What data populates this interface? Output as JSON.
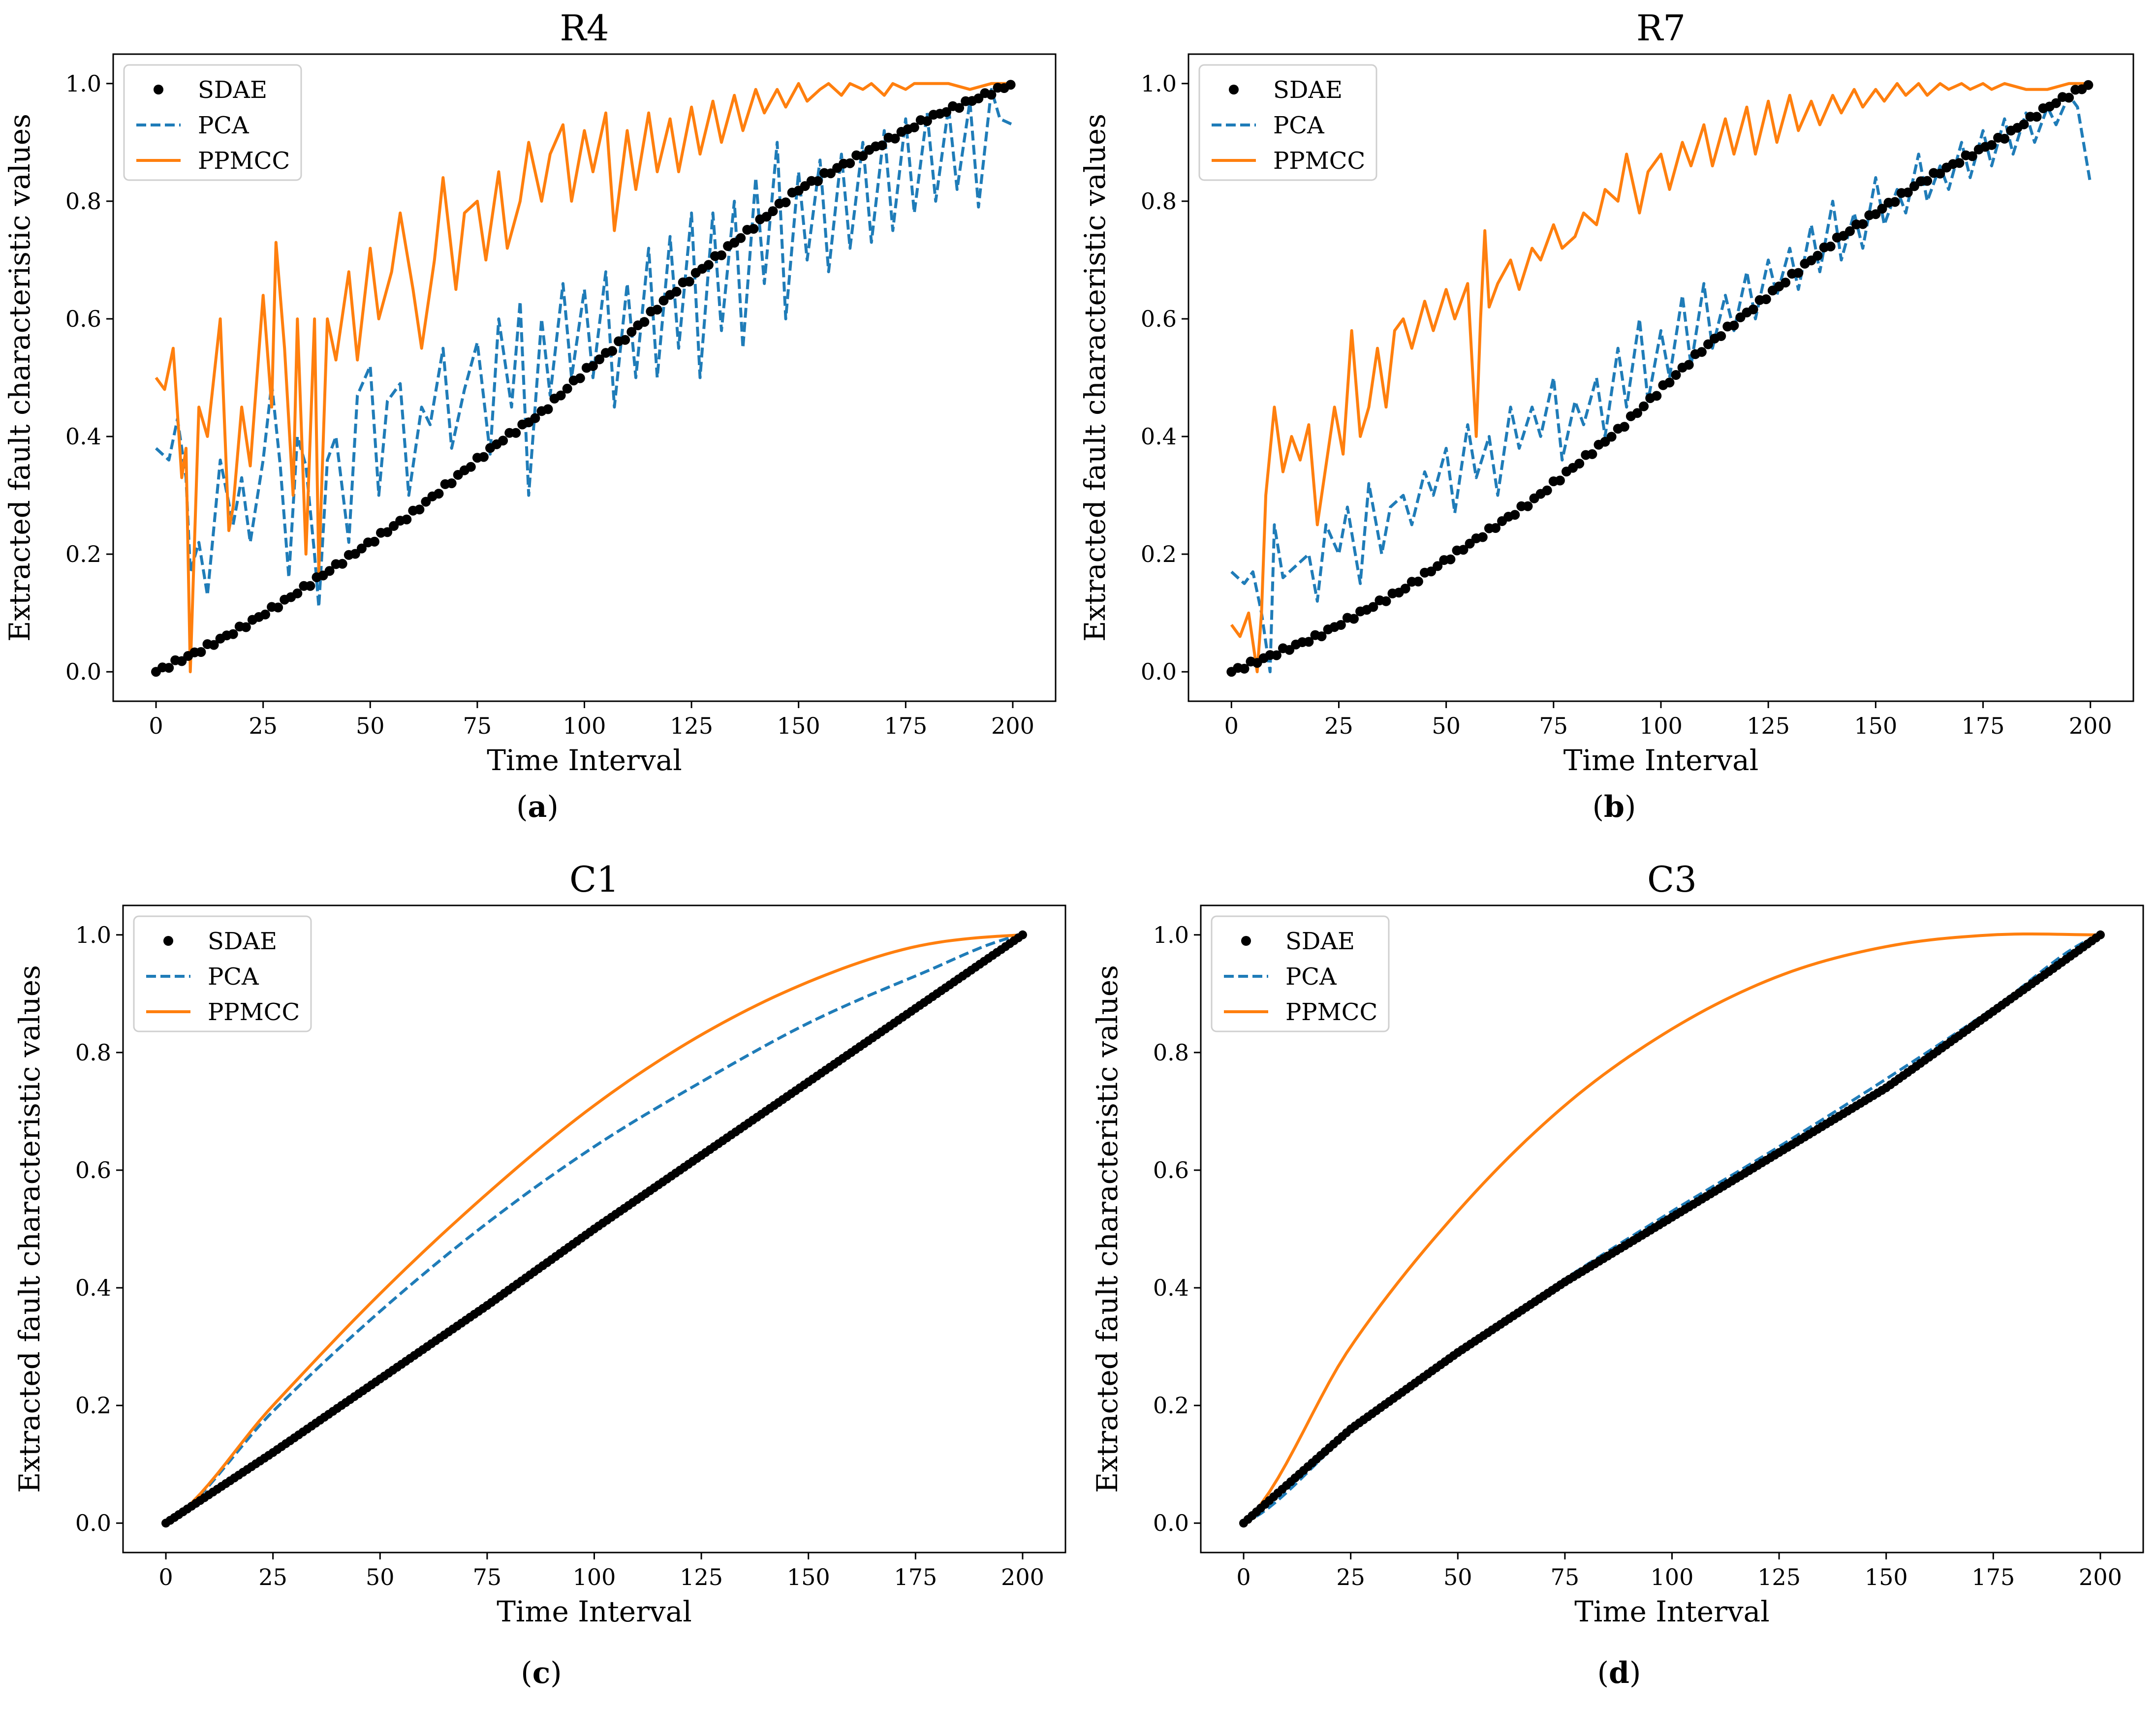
{
  "figure": {
    "colors": {
      "SDAE": "#000000",
      "PCA": "#1f7cb8",
      "PPMCC": "#ff7f0e"
    }
  },
  "chart_data": [
    {
      "panel": "a",
      "caption": "a",
      "type": "line",
      "title": "R4",
      "xlabel": "Time Interval",
      "ylabel": "Extracted fault characteristic values",
      "xlim": [
        -10,
        210
      ],
      "ylim": [
        -0.05,
        1.05
      ],
      "xticks": [
        "0",
        "25",
        "50",
        "75",
        "100",
        "125",
        "150",
        "175",
        "200"
      ],
      "yticks": [
        "0.0",
        "0.2",
        "0.4",
        "0.6",
        "0.8",
        "1.0"
      ],
      "legend": [
        "SDAE",
        "PCA",
        "PPMCC"
      ],
      "legend_position": "upper-left",
      "series": [
        {
          "name": "SDAE",
          "style": "points",
          "x": [
            0,
            10,
            20,
            30,
            40,
            50,
            60,
            70,
            80,
            90,
            100,
            110,
            120,
            130,
            140,
            150,
            160,
            170,
            180,
            190,
            200
          ],
          "y": [
            0.0,
            0.035,
            0.075,
            0.12,
            0.17,
            0.22,
            0.27,
            0.33,
            0.39,
            0.44,
            0.51,
            0.57,
            0.64,
            0.7,
            0.76,
            0.82,
            0.86,
            0.9,
            0.94,
            0.97,
            1.0
          ]
        },
        {
          "name": "PCA",
          "style": "dashed",
          "x": [
            0,
            3,
            5,
            7,
            8,
            10,
            12,
            15,
            18,
            20,
            22,
            25,
            27,
            29,
            31,
            33,
            35,
            37,
            38,
            40,
            42,
            45,
            47,
            50,
            52,
            54,
            57,
            59,
            62,
            64,
            67,
            69,
            72,
            75,
            78,
            80,
            83,
            85,
            87,
            90,
            92,
            95,
            97,
            100,
            102,
            105,
            107,
            110,
            112,
            115,
            117,
            120,
            122,
            125,
            127,
            130,
            132,
            135,
            137,
            140,
            142,
            145,
            147,
            150,
            152,
            155,
            157,
            160,
            162,
            165,
            167,
            170,
            172,
            175,
            177,
            180,
            182,
            185,
            187,
            190,
            192,
            195,
            197,
            200
          ],
          "y": [
            0.38,
            0.36,
            0.43,
            0.33,
            0.17,
            0.22,
            0.13,
            0.36,
            0.25,
            0.33,
            0.22,
            0.36,
            0.49,
            0.35,
            0.16,
            0.4,
            0.35,
            0.2,
            0.11,
            0.36,
            0.4,
            0.22,
            0.47,
            0.52,
            0.3,
            0.46,
            0.49,
            0.3,
            0.45,
            0.42,
            0.55,
            0.38,
            0.48,
            0.56,
            0.37,
            0.6,
            0.45,
            0.63,
            0.3,
            0.6,
            0.47,
            0.66,
            0.5,
            0.65,
            0.5,
            0.68,
            0.45,
            0.66,
            0.5,
            0.72,
            0.5,
            0.74,
            0.55,
            0.78,
            0.5,
            0.78,
            0.58,
            0.8,
            0.55,
            0.84,
            0.66,
            0.9,
            0.6,
            0.85,
            0.7,
            0.87,
            0.68,
            0.88,
            0.72,
            0.9,
            0.73,
            0.92,
            0.75,
            0.94,
            0.78,
            0.95,
            0.8,
            0.96,
            0.82,
            0.97,
            0.79,
            0.99,
            0.94,
            0.93
          ]
        },
        {
          "name": "PPMCC",
          "style": "solid",
          "x": [
            0,
            2,
            4,
            6,
            7,
            8,
            10,
            12,
            15,
            17,
            18,
            20,
            22,
            25,
            27,
            28,
            30,
            32,
            33,
            35,
            37,
            38,
            40,
            42,
            45,
            47,
            50,
            52,
            55,
            57,
            60,
            62,
            65,
            67,
            70,
            72,
            75,
            77,
            80,
            82,
            85,
            87,
            90,
            92,
            95,
            97,
            100,
            102,
            105,
            107,
            110,
            112,
            115,
            117,
            120,
            122,
            125,
            127,
            130,
            132,
            135,
            137,
            140,
            142,
            145,
            147,
            150,
            152,
            155,
            157,
            160,
            162,
            165,
            167,
            170,
            172,
            175,
            177,
            180,
            185,
            190,
            195,
            200
          ],
          "y": [
            0.5,
            0.48,
            0.55,
            0.33,
            0.38,
            0.0,
            0.45,
            0.4,
            0.6,
            0.24,
            0.28,
            0.45,
            0.35,
            0.64,
            0.45,
            0.73,
            0.55,
            0.3,
            0.6,
            0.2,
            0.6,
            0.17,
            0.6,
            0.53,
            0.68,
            0.53,
            0.72,
            0.6,
            0.68,
            0.78,
            0.65,
            0.55,
            0.7,
            0.84,
            0.65,
            0.78,
            0.8,
            0.7,
            0.85,
            0.72,
            0.8,
            0.9,
            0.8,
            0.88,
            0.93,
            0.8,
            0.92,
            0.85,
            0.95,
            0.75,
            0.92,
            0.82,
            0.95,
            0.85,
            0.94,
            0.85,
            0.96,
            0.88,
            0.97,
            0.9,
            0.98,
            0.92,
            0.99,
            0.95,
            0.99,
            0.96,
            1.0,
            0.97,
            0.99,
            1.0,
            0.98,
            1.0,
            0.99,
            1.0,
            0.98,
            1.0,
            0.99,
            1.0,
            1.0,
            1.0,
            0.99,
            1.0,
            1.0
          ]
        }
      ]
    },
    {
      "panel": "b",
      "caption": "b",
      "type": "line",
      "title": "R7",
      "xlabel": "Time Interval",
      "ylabel": "Extracted fault characteristic values",
      "xlim": [
        -10,
        210
      ],
      "ylim": [
        -0.05,
        1.05
      ],
      "xticks": [
        "0",
        "25",
        "50",
        "75",
        "100",
        "125",
        "150",
        "175",
        "200"
      ],
      "yticks": [
        "0.0",
        "0.2",
        "0.4",
        "0.6",
        "0.8",
        "1.0"
      ],
      "legend": [
        "SDAE",
        "PCA",
        "PPMCC"
      ],
      "legend_position": "upper-left",
      "series": [
        {
          "name": "SDAE",
          "style": "points",
          "x": [
            0,
            10,
            20,
            30,
            40,
            50,
            60,
            70,
            80,
            90,
            100,
            110,
            120,
            130,
            140,
            150,
            160,
            170,
            180,
            190,
            200
          ],
          "y": [
            0.0,
            0.03,
            0.06,
            0.1,
            0.14,
            0.19,
            0.24,
            0.29,
            0.35,
            0.41,
            0.48,
            0.55,
            0.61,
            0.67,
            0.73,
            0.78,
            0.83,
            0.87,
            0.91,
            0.96,
            1.0
          ]
        },
        {
          "name": "PCA",
          "style": "dashed",
          "x": [
            0,
            3,
            5,
            7,
            8,
            9,
            10,
            12,
            15,
            18,
            20,
            22,
            25,
            27,
            30,
            32,
            35,
            37,
            40,
            42,
            45,
            47,
            50,
            52,
            55,
            57,
            60,
            62,
            65,
            67,
            70,
            72,
            75,
            77,
            80,
            82,
            85,
            87,
            90,
            92,
            95,
            97,
            100,
            102,
            105,
            107,
            110,
            112,
            115,
            117,
            120,
            122,
            125,
            127,
            130,
            132,
            135,
            137,
            140,
            142,
            145,
            147,
            150,
            152,
            155,
            157,
            160,
            162,
            165,
            167,
            170,
            172,
            175,
            177,
            180,
            182,
            185,
            187,
            190,
            192,
            195,
            197,
            200
          ],
          "y": [
            0.17,
            0.15,
            0.17,
            0.1,
            0.05,
            0.0,
            0.25,
            0.16,
            0.18,
            0.2,
            0.12,
            0.25,
            0.2,
            0.28,
            0.15,
            0.32,
            0.2,
            0.28,
            0.3,
            0.25,
            0.34,
            0.3,
            0.38,
            0.27,
            0.42,
            0.33,
            0.4,
            0.3,
            0.45,
            0.38,
            0.45,
            0.4,
            0.5,
            0.36,
            0.46,
            0.42,
            0.5,
            0.4,
            0.55,
            0.45,
            0.6,
            0.46,
            0.58,
            0.5,
            0.64,
            0.52,
            0.66,
            0.55,
            0.64,
            0.58,
            0.68,
            0.6,
            0.7,
            0.64,
            0.72,
            0.65,
            0.76,
            0.68,
            0.8,
            0.7,
            0.78,
            0.72,
            0.84,
            0.76,
            0.82,
            0.78,
            0.88,
            0.8,
            0.86,
            0.82,
            0.9,
            0.84,
            0.92,
            0.86,
            0.94,
            0.88,
            0.95,
            0.9,
            0.96,
            0.93,
            0.98,
            0.96,
            0.83
          ]
        },
        {
          "name": "PPMCC",
          "style": "solid",
          "x": [
            0,
            2,
            4,
            6,
            7,
            8,
            10,
            12,
            14,
            16,
            18,
            20,
            22,
            24,
            26,
            28,
            30,
            32,
            34,
            36,
            38,
            40,
            42,
            45,
            47,
            50,
            52,
            55,
            57,
            58,
            59,
            60,
            62,
            65,
            67,
            70,
            72,
            75,
            77,
            80,
            82,
            85,
            87,
            90,
            92,
            95,
            97,
            100,
            102,
            105,
            107,
            110,
            112,
            115,
            117,
            120,
            122,
            125,
            127,
            130,
            132,
            135,
            137,
            140,
            142,
            145,
            147,
            150,
            152,
            155,
            157,
            160,
            162,
            165,
            167,
            170,
            172,
            175,
            177,
            180,
            185,
            190,
            195,
            200
          ],
          "y": [
            0.08,
            0.06,
            0.1,
            0.0,
            0.1,
            0.3,
            0.45,
            0.34,
            0.4,
            0.36,
            0.42,
            0.25,
            0.35,
            0.45,
            0.37,
            0.58,
            0.4,
            0.45,
            0.55,
            0.45,
            0.58,
            0.6,
            0.55,
            0.63,
            0.58,
            0.65,
            0.6,
            0.66,
            0.4,
            0.6,
            0.75,
            0.62,
            0.66,
            0.7,
            0.65,
            0.72,
            0.7,
            0.76,
            0.72,
            0.74,
            0.78,
            0.76,
            0.82,
            0.8,
            0.88,
            0.78,
            0.85,
            0.88,
            0.82,
            0.9,
            0.86,
            0.93,
            0.86,
            0.94,
            0.88,
            0.96,
            0.88,
            0.97,
            0.9,
            0.98,
            0.92,
            0.97,
            0.93,
            0.98,
            0.95,
            0.99,
            0.96,
            0.99,
            0.97,
            1.0,
            0.98,
            1.0,
            0.98,
            1.0,
            0.99,
            1.0,
            0.99,
            1.0,
            0.99,
            1.0,
            0.99,
            0.99,
            1.0,
            1.0
          ]
        }
      ]
    },
    {
      "panel": "c",
      "caption": "c",
      "type": "line",
      "title": "C1",
      "xlabel": "Time Interval",
      "ylabel": "Extracted fault characteristic values",
      "xlim": [
        -10,
        210
      ],
      "ylim": [
        -0.05,
        1.05
      ],
      "xticks": [
        "0",
        "25",
        "50",
        "75",
        "100",
        "125",
        "150",
        "175",
        "200"
      ],
      "yticks": [
        "0.0",
        "0.2",
        "0.4",
        "0.6",
        "0.8",
        "1.0"
      ],
      "legend": [
        "SDAE",
        "PCA",
        "PPMCC"
      ],
      "legend_position": "upper-left",
      "series": [
        {
          "name": "SDAE",
          "style": "points",
          "x": [
            0,
            25,
            50,
            75,
            100,
            125,
            150,
            175,
            200
          ],
          "y": [
            0.0,
            0.12,
            0.245,
            0.37,
            0.5,
            0.625,
            0.75,
            0.875,
            1.0
          ]
        },
        {
          "name": "PCA",
          "style": "dashed",
          "x": [
            0,
            25,
            50,
            75,
            100,
            125,
            150,
            175,
            200
          ],
          "y": [
            0.0,
            0.19,
            0.36,
            0.51,
            0.64,
            0.75,
            0.85,
            0.93,
            1.0
          ]
        },
        {
          "name": "PPMCC",
          "style": "solid",
          "x": [
            0,
            25,
            50,
            75,
            100,
            125,
            150,
            175,
            200
          ],
          "y": [
            0.0,
            0.2,
            0.39,
            0.56,
            0.71,
            0.83,
            0.92,
            0.98,
            1.0
          ]
        }
      ]
    },
    {
      "panel": "d",
      "caption": "d",
      "type": "line",
      "title": "C3",
      "xlabel": "Time Interval",
      "ylabel": "Extracted fault characteristic values",
      "xlim": [
        -10,
        210
      ],
      "ylim": [
        -0.05,
        1.05
      ],
      "xticks": [
        "0",
        "25",
        "50",
        "75",
        "100",
        "125",
        "150",
        "175",
        "200"
      ],
      "yticks": [
        "0.0",
        "0.2",
        "0.4",
        "0.6",
        "0.8",
        "1.0"
      ],
      "legend": [
        "SDAE",
        "PCA",
        "PPMCC"
      ],
      "legend_position": "upper-left",
      "series": [
        {
          "name": "SDAE",
          "style": "points",
          "x": [
            0,
            25,
            50,
            75,
            100,
            125,
            150,
            175,
            200
          ],
          "y": [
            0.0,
            0.16,
            0.29,
            0.41,
            0.52,
            0.63,
            0.74,
            0.87,
            1.0
          ]
        },
        {
          "name": "PCA",
          "style": "dashed",
          "x": [
            0,
            25,
            50,
            75,
            100,
            125,
            150,
            175,
            200
          ],
          "y": [
            0.0,
            0.155,
            0.29,
            0.415,
            0.53,
            0.64,
            0.755,
            0.875,
            1.0
          ]
        },
        {
          "name": "PPMCC",
          "style": "solid",
          "x": [
            0,
            25,
            50,
            75,
            100,
            125,
            150,
            175,
            200
          ],
          "y": [
            0.0,
            0.3,
            0.53,
            0.71,
            0.84,
            0.93,
            0.98,
            1.0,
            1.0
          ]
        }
      ]
    }
  ]
}
